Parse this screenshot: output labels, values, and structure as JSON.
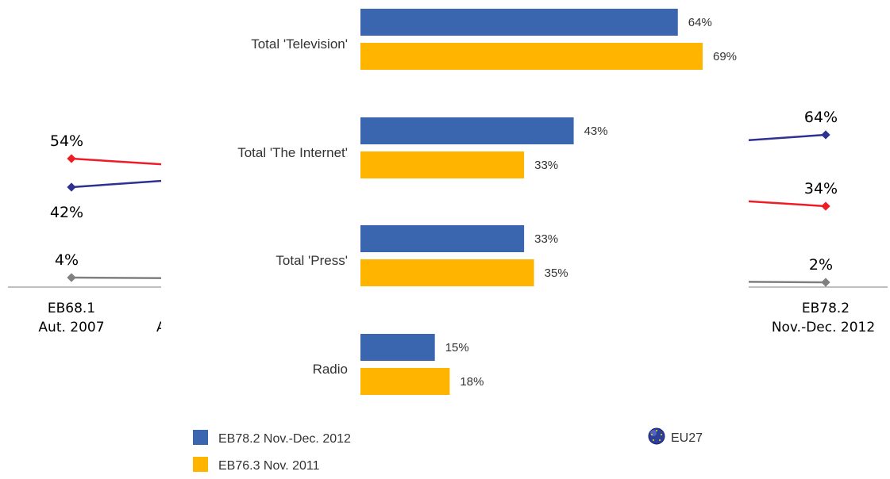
{
  "chart_data": [
    {
      "type": "line",
      "partially_occluded": true,
      "x": [
        "EB68.1 Aut. 2007",
        "EB78.2 Nov.-Dec. 2012"
      ],
      "x_tick_lines": [
        [
          "EB68.1",
          "Aut. 2007"
        ],
        [
          "EB78.2",
          "Nov.-Dec. 2012"
        ]
      ],
      "series": [
        {
          "values": [
            54,
            34
          ],
          "labels": [
            "54%",
            "34%"
          ],
          "color": "#ee1c25"
        },
        {
          "values": [
            42,
            64
          ],
          "labels": [
            "42%",
            "64%"
          ],
          "color": "#2e3092"
        },
        {
          "values": [
            4,
            2
          ],
          "labels": [
            "4%",
            "2%"
          ],
          "color": "#808080"
        }
      ]
    },
    {
      "type": "bar",
      "orientation": "horizontal",
      "categories": [
        "Total 'Television'",
        "Total 'The Internet'",
        "Total 'Press'",
        "Radio"
      ],
      "series": [
        {
          "name": "EB78.2 Nov.-Dec. 2012",
          "color": "#3a66b0",
          "values": [
            64,
            43,
            33,
            15
          ],
          "labels": [
            "64%",
            "43%",
            "33%",
            "15%"
          ]
        },
        {
          "name": "EB76.3 Nov. 2011",
          "color": "#ffb400",
          "values": [
            69,
            33,
            35,
            18
          ],
          "labels": [
            "69%",
            "33%",
            "35%",
            "18%"
          ]
        }
      ],
      "xlim": [
        0,
        100
      ],
      "legend": {
        "position": "bottom",
        "region": "EU27",
        "region_icon": "eu-flag-icon"
      }
    }
  ]
}
